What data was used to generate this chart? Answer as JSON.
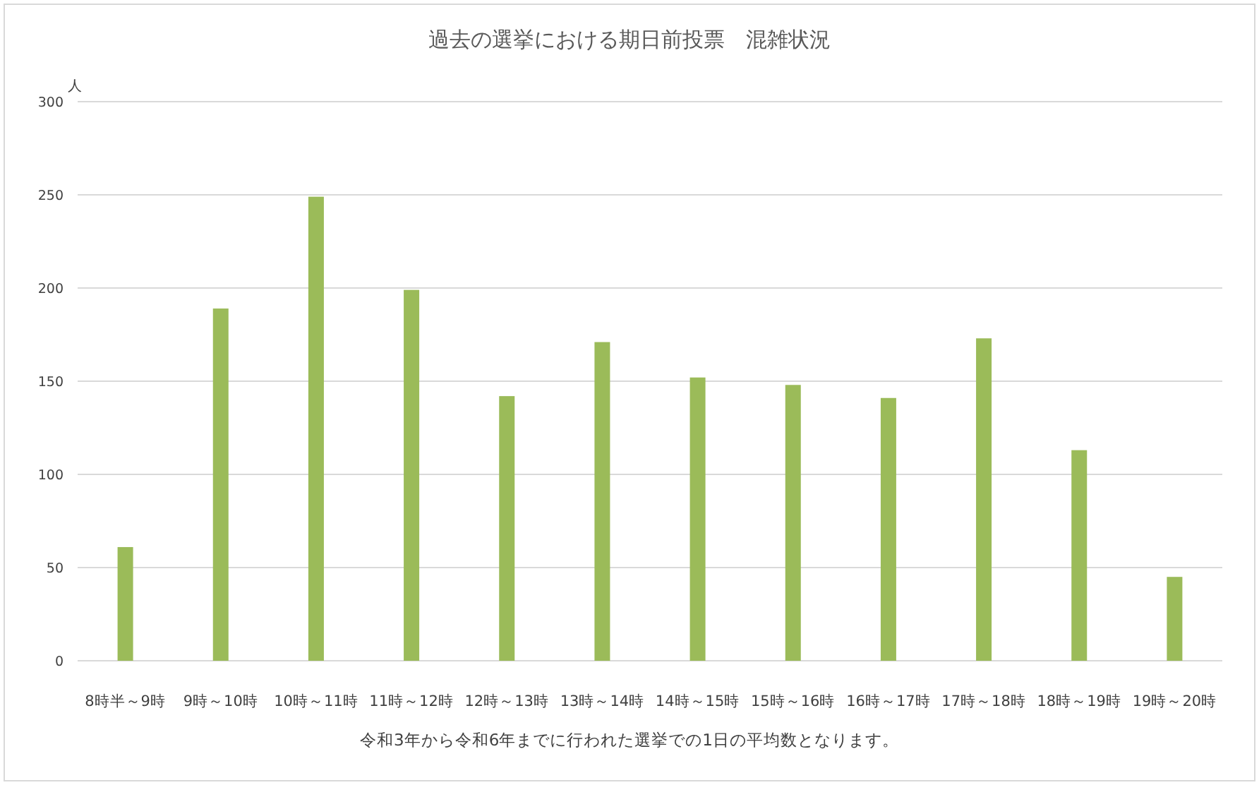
{
  "chart_data": {
    "type": "bar",
    "title": "過去の選挙における期日前投票　混雑状況",
    "ylabel": "人",
    "categories": [
      "8時半～9時",
      "9時～10時",
      "10時～11時",
      "11時～12時",
      "12時～13時",
      "13時～14時",
      "14時～15時",
      "15時～16時",
      "16時～17時",
      "17時～18時",
      "18時～19時",
      "19時～20時"
    ],
    "values": [
      61,
      189,
      249,
      199,
      142,
      171,
      152,
      148,
      141,
      173,
      113,
      45
    ],
    "color": "#9bbb59",
    "ylim": [
      0,
      300
    ],
    "yticks": [
      0,
      50,
      100,
      150,
      200,
      250,
      300
    ],
    "grid": "y",
    "annotations": [
      "令和3年から令和6年までに行われた選挙での1日の平均数となります。"
    ]
  }
}
